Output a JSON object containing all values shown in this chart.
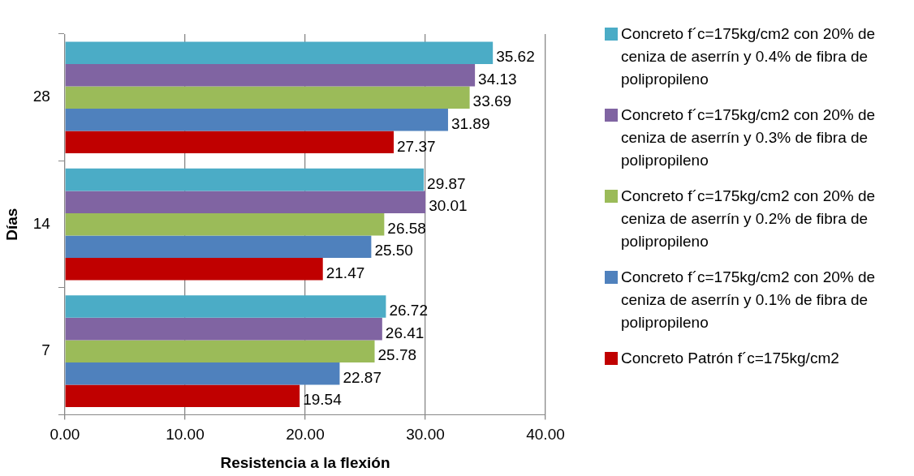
{
  "chart_data": {
    "type": "bar",
    "orientation": "horizontal",
    "xlabel": "Resistencia a la flexión",
    "ylabel": "Días",
    "categories": [
      "28",
      "14",
      "7"
    ],
    "series": [
      {
        "name": "Concreto f´c=175kg/cm2 con 20% de ceniza de aserrín y 0.4% de fibra de polipropileno",
        "color": "#4bacc6",
        "values": [
          35.62,
          29.87,
          26.72
        ],
        "value_labels": [
          "35.62",
          "29.87",
          "26.72"
        ]
      },
      {
        "name": "Concreto f´c=175kg/cm2 con 20% de ceniza de aserrín y 0.3% de fibra de polipropileno",
        "color": "#8064a2",
        "values": [
          34.13,
          30.01,
          26.41
        ],
        "value_labels": [
          "34.13",
          "30.01",
          "26.41"
        ]
      },
      {
        "name": "Concreto f´c=175kg/cm2 con 20% de ceniza de aserrín y 0.2% de fibra de polipropileno",
        "color": "#9bbb59",
        "values": [
          33.69,
          26.58,
          25.78
        ],
        "value_labels": [
          "33.69",
          "26.58",
          "25.78"
        ]
      },
      {
        "name": "Concreto f´c=175kg/cm2 con 20% de ceniza de aserrín y 0.1% de fibra de polipropileno",
        "color": "#4f81bd",
        "values": [
          31.89,
          25.5,
          22.87
        ],
        "value_labels": [
          "31.89",
          "25.50",
          "22.87"
        ]
      },
      {
        "name": "Concreto Patrón f´c=175kg/cm2",
        "color": "#c00000",
        "values": [
          27.37,
          21.47,
          19.54
        ],
        "value_labels": [
          "27.37",
          "21.47",
          "19.54"
        ]
      }
    ],
    "xlim": [
      0,
      40
    ],
    "xticks": [
      {
        "value": 0,
        "label": "0.00"
      },
      {
        "value": 10,
        "label": "10.00"
      },
      {
        "value": 20,
        "label": "20.00"
      },
      {
        "value": 30,
        "label": "30.00"
      },
      {
        "value": 40,
        "label": "40.00"
      }
    ],
    "grid": "x",
    "legend": "right"
  }
}
